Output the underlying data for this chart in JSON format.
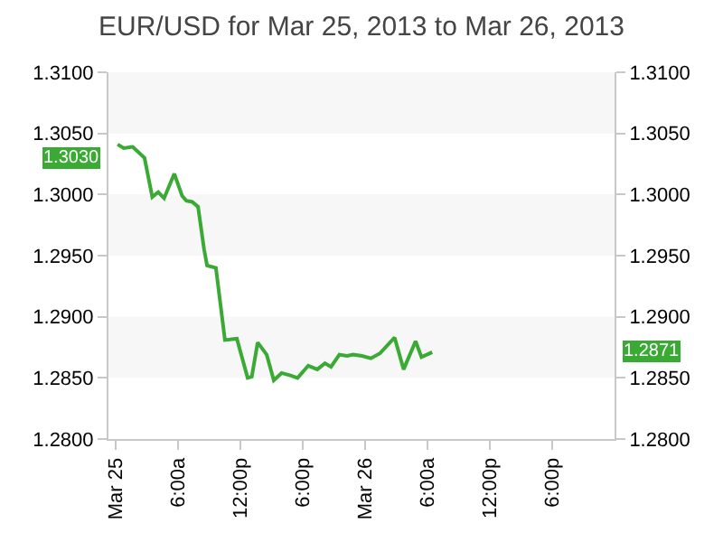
{
  "chart_data": {
    "type": "line",
    "title": "EUR/USD for Mar 25, 2013 to Mar 26, 2013",
    "x": [
      "2013-03-25T00:13",
      "2013-03-25T00:48",
      "2013-03-25T01:40",
      "2013-03-25T02:48",
      "2013-03-25T03:33",
      "2013-03-25T04:07",
      "2013-03-25T04:41",
      "2013-03-25T05:40",
      "2013-03-25T06:25",
      "2013-03-25T06:49",
      "2013-03-25T07:23",
      "2013-03-25T07:57",
      "2013-03-25T08:32",
      "2013-03-25T08:49",
      "2013-03-25T09:40",
      "2013-03-25T10:32",
      "2013-03-25T11:41",
      "2013-03-25T12:43",
      "2013-03-25T13:07",
      "2013-03-25T13:41",
      "2013-03-25T14:33",
      "2013-03-25T15:14",
      "2013-03-25T15:59",
      "2013-03-25T16:50",
      "2013-03-25T17:31",
      "2013-03-25T18:33",
      "2013-03-25T19:25",
      "2013-03-25T20:09",
      "2013-03-25T20:44",
      "2013-03-25T21:32",
      "2013-03-25T22:17",
      "2013-03-25T22:51",
      "2013-03-25T23:43",
      "2013-03-26T00:34",
      "2013-03-26T01:26",
      "2013-03-26T02:51",
      "2013-03-26T03:43",
      "2013-03-26T04:52",
      "2013-03-26T05:26",
      "2013-03-26T06:28"
    ],
    "series": [
      {
        "color": "#3aaa35",
        "values": [
          1.3041,
          1.3038,
          1.3039,
          1.303,
          1.2998,
          1.3002,
          1.2997,
          1.3017,
          1.2999,
          1.2995,
          1.2994,
          1.299,
          1.2955,
          1.2942,
          1.294,
          1.2881,
          1.2882,
          1.285,
          1.2851,
          1.2879,
          1.2869,
          1.2848,
          1.2854,
          1.2852,
          1.285,
          1.286,
          1.2857,
          1.2862,
          1.2859,
          1.2869,
          1.2868,
          1.2869,
          1.2868,
          1.2866,
          1.287,
          1.2883,
          1.2857,
          1.288,
          1.2867,
          1.2871
        ]
      }
    ],
    "xlim": [
      "2013-03-24T23:20",
      "2013-03-27T00:00"
    ],
    "xticks": [
      {
        "value": "2013-03-25T00:00",
        "label": "Mar 25"
      },
      {
        "value": "2013-03-25T06:00",
        "label": "6:00a"
      },
      {
        "value": "2013-03-25T12:00",
        "label": "12:00p"
      },
      {
        "value": "2013-03-25T18:00",
        "label": "6:00p"
      },
      {
        "value": "2013-03-26T00:00",
        "label": "Mar 26"
      },
      {
        "value": "2013-03-26T06:00",
        "label": "6:00a"
      },
      {
        "value": "2013-03-26T12:00",
        "label": "12:00p"
      },
      {
        "value": "2013-03-26T18:00",
        "label": "6:00p"
      }
    ],
    "ylim": [
      1.28,
      1.31
    ],
    "yticks": [
      {
        "value": 1.28,
        "label": "1.2800"
      },
      {
        "value": 1.285,
        "label": "1.2850"
      },
      {
        "value": 1.29,
        "label": "1.2900"
      },
      {
        "value": 1.295,
        "label": "1.2950"
      },
      {
        "value": 1.3,
        "label": "1.3000"
      },
      {
        "value": 1.305,
        "label": "1.3050"
      },
      {
        "value": 1.31,
        "label": "1.3100"
      }
    ],
    "y2lim": [
      1.28,
      1.31
    ],
    "y2ticks": [
      {
        "value": 1.28,
        "label": "1.2800"
      },
      {
        "value": 1.285,
        "label": "1.2850"
      },
      {
        "value": 1.29,
        "label": "1.2900"
      },
      {
        "value": 1.295,
        "label": "1.2950"
      },
      {
        "value": 1.3,
        "label": "1.3000"
      },
      {
        "value": 1.305,
        "label": "1.3050"
      },
      {
        "value": 1.31,
        "label": "1.3100"
      }
    ],
    "annotations": [
      "1.3030",
      "1.2871"
    ],
    "marker": "none",
    "line_style": "solid"
  }
}
